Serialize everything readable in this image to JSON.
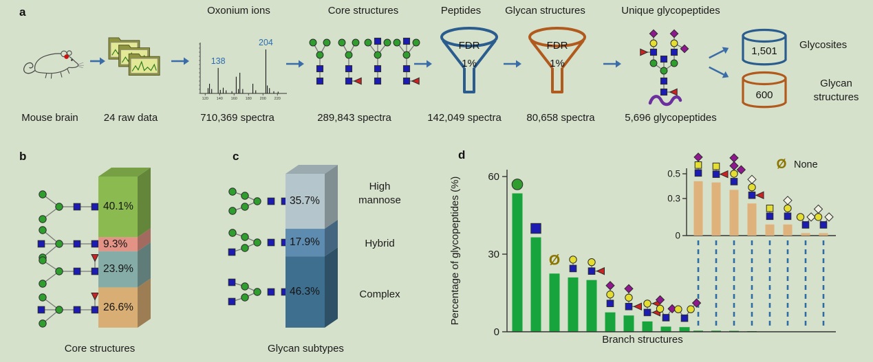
{
  "colors": {
    "background": "#d6e1cb",
    "accent_blue": "#2b5c8e",
    "accent_orange": "#b15a1e",
    "arrow": "#3a6da8",
    "bar_green": "#18a43c",
    "inset_tan": "#dfb27c",
    "dashed_blue": "#2e6da4",
    "none_olive": "#8a7500",
    "peak_label_blue": "#2b6cb0"
  },
  "a": {
    "panel_label": "a",
    "mouse_caption": "Mouse brain",
    "raw_caption": "24 raw data",
    "spectrum_title": "Oxonium ions",
    "spectrum_caption": "710,369 spectra",
    "core_title": "Core structures",
    "core_caption": "289,843 spectra",
    "peptides_title": "Peptides",
    "peptides_caption": "142,049 spectra",
    "glycan_title": "Glycan structures",
    "glycan_caption": "80,658 spectra",
    "unique_title": "Unique glycopeptides",
    "unique_caption": "5,696 glycopeptides",
    "fdr_label": "FDR",
    "fdr_pct": "1%",
    "outputs": [
      {
        "value": "1,501",
        "label": "Glycosites"
      },
      {
        "value": "600",
        "label": "Glycan structures",
        "label_1": "Glycan",
        "label_2": "structures"
      }
    ]
  },
  "chart_data": [
    {
      "panel_label": "b",
      "id": "core_structures",
      "type": "bar",
      "stacked": true,
      "title": "Core structures",
      "segments": [
        {
          "label": "40.1%",
          "value": 40.1,
          "color": "#8aba50",
          "icon": "biantennary-core"
        },
        {
          "label": "9.3%",
          "value": 9.3,
          "color": "#e39386",
          "icon": "bisecting-core"
        },
        {
          "label": "23.9%",
          "value": 23.9,
          "color": "#85aca6",
          "icon": "fucosylated-core"
        },
        {
          "label": "26.6%",
          "value": 26.6,
          "color": "#d9ae74",
          "icon": "bisecting-fucosylated-core"
        }
      ]
    },
    {
      "panel_label": "c",
      "id": "glycan_subtypes",
      "type": "bar",
      "stacked": true,
      "title": "Glycan subtypes",
      "segments": [
        {
          "label": "35.7%",
          "value": 35.7,
          "name": "High mannose",
          "color": "#b4c6cb",
          "icon": "high-mannose-glycan"
        },
        {
          "label": "17.9%",
          "value": 17.9,
          "name": "Hybrid",
          "color": "#5e8cb0",
          "icon": "hybrid-glycan"
        },
        {
          "label": "46.3%",
          "value": 46.3,
          "name": "Complex",
          "color": "#3f6f8f",
          "icon": "complex-glycan"
        }
      ]
    },
    {
      "panel_label": "d",
      "id": "branch_structures",
      "type": "bar",
      "ylabel": "Percentage of glycopeptides (%)",
      "xlabel": "Branch structures",
      "ylim": [
        0,
        60
      ],
      "yticks": [
        0,
        30,
        60
      ],
      "bar_color": "#18a43c",
      "values": [
        53.5,
        36.5,
        22.5,
        21,
        20,
        7.5,
        6.3,
        4,
        2,
        1.8,
        0.44,
        0.43,
        0.37,
        0.26,
        0.09,
        0.09,
        0.02,
        0.02
      ],
      "categories": [
        "green circle",
        "blue square",
        "none",
        "yellow circle - blue square",
        "yellow circle - blue square + red triangle",
        "purple diamond - yellow circle - blue square",
        "purple diamond - yellow circle - blue square + red triangle",
        "yellow circle + red triangle - blue square + red triangle",
        "branched: purple diamond - yellow circle / purple diamond",
        "branched: yellow circle / yellow circle + purple diamond",
        "purple diamond - yellow square - blue square",
        "yellow square - blue square + red triangle",
        "purple diamond - purple diamond - yellow circle - blue square + purple diamond",
        "white diamond - yellow circle - blue square + red triangle",
        "yellow square - blue square",
        "white diamond - yellow circle - blue square",
        "branched: yellow circle / white diamond",
        "branched: white diamond - yellow circle / white diamond"
      ],
      "legend": {
        "symbol": "Ø",
        "label": "None",
        "color": "#8a7500"
      },
      "glyphs": [
        {
          "s": 1.5,
          "nodes": [
            [
              "c",
              "g",
              0,
              0
            ]
          ]
        },
        {
          "s": 1.5,
          "nodes": [
            [
              "s",
              "b",
              0,
              0
            ]
          ]
        },
        {
          "none": true
        },
        {
          "nodes": [
            [
              "c",
              "y",
              0,
              0
            ],
            [
              "s",
              "b",
              0,
              1
            ]
          ],
          "edges": [
            [
              0,
              1
            ]
          ]
        },
        {
          "nodes": [
            [
              "c",
              "y",
              0,
              0
            ],
            [
              "s",
              "b",
              0,
              1
            ],
            [
              "tl",
              "r",
              1,
              1
            ]
          ],
          "edges": [
            [
              0,
              1
            ],
            [
              1,
              2
            ]
          ]
        },
        {
          "nodes": [
            [
              "d",
              "p",
              0,
              0
            ],
            [
              "c",
              "y",
              0,
              1
            ],
            [
              "s",
              "b",
              0,
              2
            ]
          ],
          "edges": [
            [
              0,
              1
            ],
            [
              1,
              2
            ]
          ]
        },
        {
          "nodes": [
            [
              "d",
              "p",
              0,
              0
            ],
            [
              "c",
              "y",
              0,
              1
            ],
            [
              "s",
              "b",
              0,
              2
            ],
            [
              "tl",
              "r",
              1,
              2
            ]
          ],
          "edges": [
            [
              0,
              1
            ],
            [
              1,
              2
            ],
            [
              2,
              3
            ]
          ]
        },
        {
          "nodes": [
            [
              "c",
              "y",
              0,
              0
            ],
            [
              "tl",
              "r",
              1,
              0
            ],
            [
              "s",
              "b",
              0,
              1
            ],
            [
              "tl",
              "r",
              1,
              1
            ]
          ],
          "edges": [
            [
              0,
              1
            ],
            [
              0,
              2
            ],
            [
              2,
              3
            ]
          ]
        },
        {
          "nodes": [
            [
              "d",
              "p",
              -0.65,
              0
            ],
            [
              "c",
              "y",
              -0.65,
              1
            ],
            [
              "s",
              "b",
              0,
              2
            ],
            [
              "d",
              "p",
              0.7,
              1
            ]
          ],
          "edges": [
            [
              0,
              1
            ],
            [
              1,
              2
            ],
            [
              2,
              3
            ]
          ]
        },
        {
          "nodes": [
            [
              "c",
              "y",
              -0.7,
              1
            ],
            [
              "s",
              "b",
              0,
              2
            ],
            [
              "c",
              "y",
              0.7,
              1
            ],
            [
              "d",
              "p",
              1.35,
              0.3
            ]
          ],
          "edges": [
            [
              0,
              1
            ],
            [
              1,
              2
            ],
            [
              2,
              3
            ]
          ]
        },
        {
          "nodes": [
            [
              "d",
              "p",
              0,
              0
            ],
            [
              "s",
              "y",
              0,
              1
            ],
            [
              "s",
              "b",
              0,
              2
            ]
          ],
          "edges": [
            [
              0,
              1
            ],
            [
              1,
              2
            ]
          ]
        },
        {
          "nodes": [
            [
              "s",
              "y",
              0,
              0
            ],
            [
              "s",
              "b",
              0,
              1
            ],
            [
              "tl",
              "r",
              1,
              1
            ]
          ],
          "edges": [
            [
              0,
              1
            ],
            [
              1,
              2
            ]
          ]
        },
        {
          "nodes": [
            [
              "d",
              "p",
              0,
              0
            ],
            [
              "d",
              "p",
              0,
              1
            ],
            [
              "c",
              "y",
              0,
              2
            ],
            [
              "s",
              "b",
              0,
              3
            ],
            [
              "d",
              "p",
              0.9,
              1.5
            ]
          ],
          "edges": [
            [
              0,
              1
            ],
            [
              1,
              2
            ],
            [
              2,
              3
            ],
            [
              2,
              4
            ]
          ]
        },
        {
          "nodes": [
            [
              "d",
              "w",
              0,
              0
            ],
            [
              "c",
              "y",
              0,
              1
            ],
            [
              "s",
              "b",
              0,
              2
            ],
            [
              "tl",
              "r",
              1,
              2
            ]
          ],
          "edges": [
            [
              0,
              1
            ],
            [
              1,
              2
            ],
            [
              2,
              3
            ]
          ]
        },
        {
          "nodes": [
            [
              "s",
              "y",
              0,
              0
            ],
            [
              "s",
              "b",
              0,
              1
            ]
          ],
          "edges": [
            [
              0,
              1
            ]
          ]
        },
        {
          "nodes": [
            [
              "d",
              "w",
              0,
              0
            ],
            [
              "c",
              "y",
              0,
              1
            ],
            [
              "s",
              "b",
              0,
              2
            ]
          ],
          "edges": [
            [
              0,
              1
            ],
            [
              1,
              2
            ]
          ]
        },
        {
          "nodes": [
            [
              "c",
              "y",
              -0.65,
              1
            ],
            [
              "s",
              "b",
              0,
              2
            ],
            [
              "d",
              "w",
              0.7,
              1
            ]
          ],
          "edges": [
            [
              0,
              1
            ],
            [
              1,
              2
            ]
          ]
        },
        {
          "nodes": [
            [
              "d",
              "w",
              -0.65,
              0
            ],
            [
              "c",
              "y",
              -0.65,
              1
            ],
            [
              "s",
              "b",
              0,
              2
            ],
            [
              "d",
              "w",
              0.7,
              1
            ]
          ],
          "edges": [
            [
              0,
              1
            ],
            [
              1,
              2
            ],
            [
              2,
              3
            ]
          ]
        }
      ],
      "inset": {
        "yticks": [
          0,
          0.3,
          0.5
        ],
        "ylim": [
          0,
          0.5
        ],
        "bar_color": "#dfb27c",
        "values": [
          0.44,
          0.43,
          0.37,
          0.26,
          0.09,
          0.09,
          0.02,
          0.02
        ]
      }
    },
    {
      "id": "oxonium_spectrum",
      "type": "bar",
      "title": "Oxonium ions",
      "x_ticks": [
        "120",
        "140",
        "160",
        "180",
        "200",
        "220"
      ],
      "peaks": [
        [
          124,
          0.12
        ],
        [
          126,
          0.22
        ],
        [
          129,
          0.1
        ],
        [
          138,
          0.58
        ],
        [
          141,
          0.08
        ],
        [
          145,
          0.13
        ],
        [
          149,
          0.07
        ],
        [
          157,
          0.05
        ],
        [
          163,
          0.38
        ],
        [
          166,
          0.1
        ],
        [
          168,
          0.47
        ],
        [
          172,
          0.1
        ],
        [
          186,
          0.22
        ],
        [
          190,
          0.07
        ],
        [
          204,
          1.0
        ],
        [
          206,
          0.18
        ],
        [
          209,
          0.12
        ],
        [
          215,
          0.05
        ],
        [
          221,
          0.04
        ]
      ],
      "peak_labels": [
        {
          "mz": 138,
          "text": "138"
        },
        {
          "mz": 204,
          "text": "204"
        }
      ]
    }
  ]
}
